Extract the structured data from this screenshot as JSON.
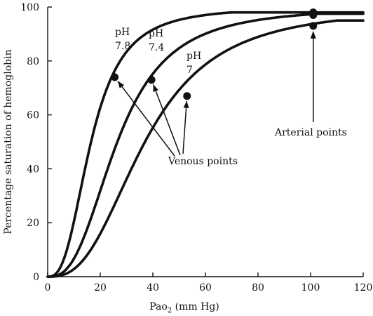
{
  "chart_data": {
    "type": "line",
    "title": "",
    "xlabel": "Pao",
    "xlabel_subscript": "2",
    "xlabel_unit": " (mm Hg)",
    "ylabel": "Percentage saturation of hemoglobin",
    "xlim": [
      0,
      120
    ],
    "ylim": [
      0,
      100
    ],
    "x_ticks": [
      0,
      20,
      40,
      60,
      80,
      100,
      120
    ],
    "y_ticks": [
      0,
      20,
      40,
      60,
      80,
      100
    ],
    "grid": false,
    "legend": "none",
    "series": [
      {
        "label_line1": "pH",
        "label_line2": "7.8",
        "p50": 16.5,
        "n": 2.7,
        "x": [
          0,
          5,
          10,
          15,
          20,
          25,
          30,
          40,
          50,
          60,
          70,
          80,
          90,
          100,
          110,
          120
        ],
        "values": [
          0,
          4,
          20,
          44,
          63,
          75,
          83,
          91,
          95,
          96.5,
          97.2,
          97.6,
          97.8,
          97.9,
          98,
          98
        ],
        "venous_point": {
          "x": 25.5,
          "y": 74
        },
        "arterial_point": {
          "x": 101,
          "y": 98
        }
      },
      {
        "label_line1": "pH",
        "label_line2": "7.4",
        "p50": 26.5,
        "n": 2.7,
        "x": [
          0,
          5,
          10,
          15,
          20,
          25,
          30,
          40,
          50,
          60,
          70,
          80,
          90,
          100,
          110,
          120
        ],
        "values": [
          0,
          2,
          8,
          18,
          32,
          46,
          58,
          75,
          85,
          90,
          93.5,
          95.5,
          96.5,
          97,
          97.3,
          97.5
        ],
        "venous_point": {
          "x": 39.5,
          "y": 73
        },
        "arterial_point": {
          "x": 101,
          "y": 97
        }
      },
      {
        "label_line1": "pH",
        "label_line2": "7",
        "p50": 37,
        "n": 2.7,
        "x": [
          0,
          5,
          10,
          15,
          20,
          25,
          30,
          40,
          50,
          60,
          70,
          80,
          90,
          100,
          110,
          120
        ],
        "values": [
          0,
          1,
          4,
          9,
          16,
          25,
          35,
          52,
          64,
          75,
          83,
          88,
          91,
          93,
          94.3,
          95
        ],
        "venous_point": {
          "x": 53,
          "y": 67
        },
        "arterial_point": {
          "x": 101,
          "y": 93
        }
      }
    ],
    "annotations": {
      "venous": "Venous points",
      "arterial": "Arterial points"
    }
  }
}
